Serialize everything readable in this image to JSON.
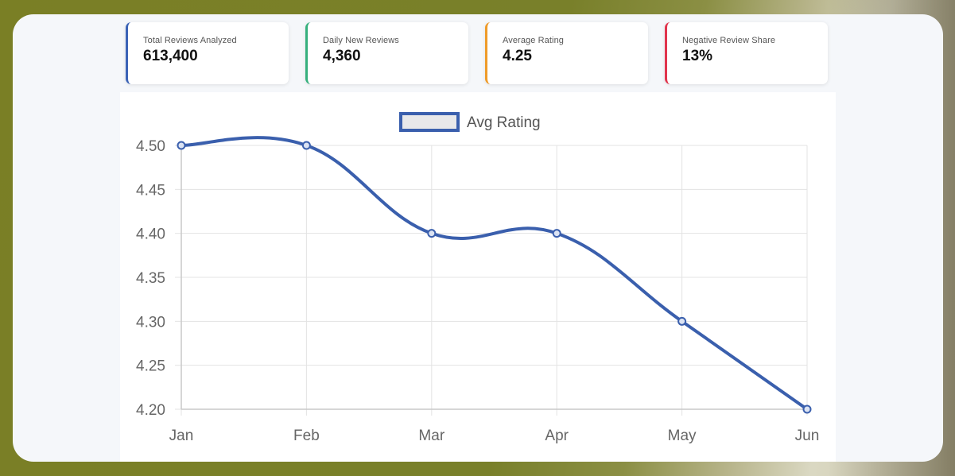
{
  "colors": {
    "accent_blue": "#3b63b6",
    "accent_green": "#36b07d",
    "accent_orange": "#ef9b29",
    "accent_red": "#e1344c",
    "line": "#3a5fad",
    "grid": "#e3e3e3"
  },
  "kpis": [
    {
      "label": "Total Reviews Analyzed",
      "value": "613,400",
      "color": "#3b63b6"
    },
    {
      "label": "Daily New Reviews",
      "value": "4,360",
      "color": "#36b07d"
    },
    {
      "label": "Average Rating",
      "value": "4.25",
      "color": "#ef9b29"
    },
    {
      "label": "Negative Review Share",
      "value": "13%",
      "color": "#e1344c"
    }
  ],
  "chart_data": {
    "type": "line",
    "categories": [
      "Jan",
      "Feb",
      "Mar",
      "Apr",
      "May",
      "Jun"
    ],
    "series": [
      {
        "name": "Avg Rating",
        "values": [
          4.5,
          4.5,
          4.4,
          4.4,
          4.3,
          4.2
        ]
      }
    ],
    "ylim": [
      4.2,
      4.5
    ],
    "yticks": [
      "4.50",
      "4.45",
      "4.40",
      "4.35",
      "4.30",
      "4.25",
      "4.20"
    ],
    "grid": true,
    "legend": "top-center"
  }
}
